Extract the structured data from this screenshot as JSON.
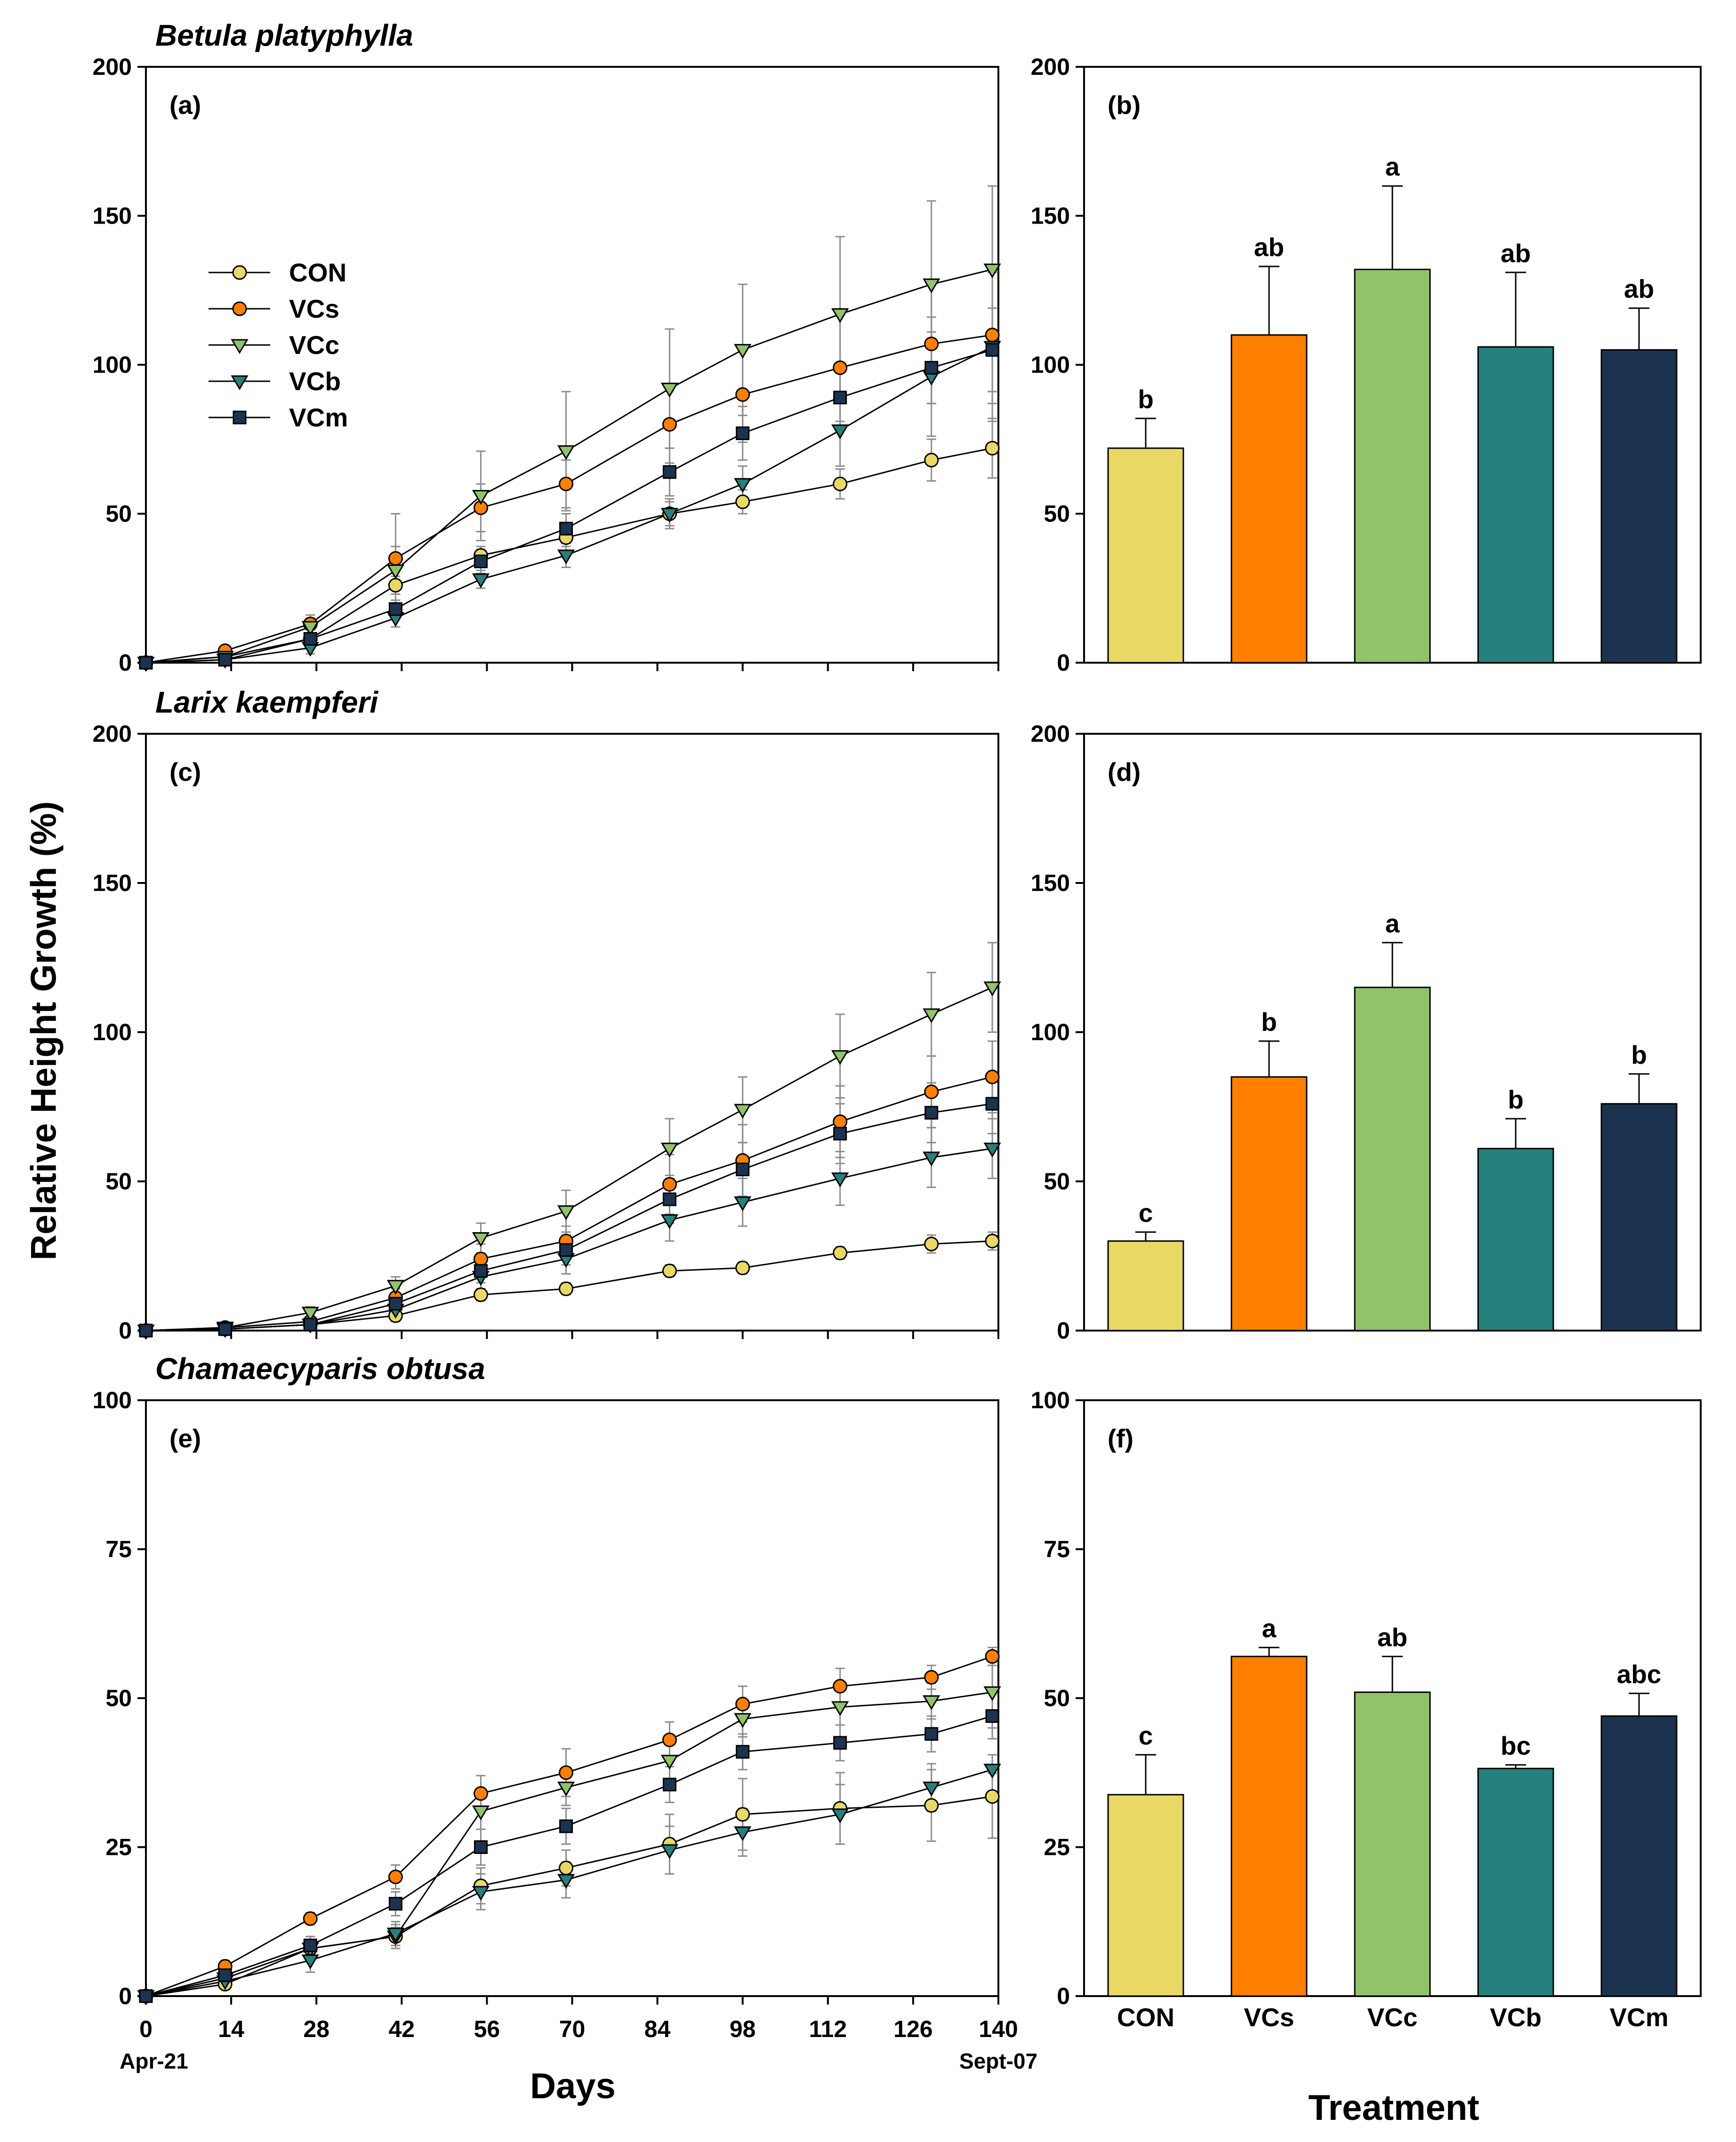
{
  "figure": {
    "ylabel": "Relative Height Growth (%)",
    "days_label": "Days",
    "treatment_label": "Treatment",
    "start_date_label": "Apr-21",
    "end_date_label": "Sept-07"
  },
  "colors": {
    "CON": "#EAD865",
    "VCs": "#FF7F00",
    "VCc": "#92C36B",
    "VCb": "#26807D",
    "VCm": "#1C3350",
    "error_bar": "#8C8C8C"
  },
  "chart_data": [
    {
      "panel": "(a)",
      "type": "line",
      "title": "Betula platyphylla",
      "xlim": [
        0,
        140
      ],
      "xticks": [
        0,
        14,
        28,
        42,
        56,
        70,
        84,
        98,
        112,
        126,
        140
      ],
      "xtick_labels": false,
      "ylim": [
        0,
        200
      ],
      "yticks": [
        0,
        50,
        100,
        150,
        200
      ],
      "legend": "top-left",
      "x": [
        0,
        13,
        27,
        41,
        55,
        69,
        86,
        98,
        114,
        129,
        139
      ],
      "series": [
        {
          "name": "CON",
          "values": [
            0,
            2,
            8,
            26,
            36,
            42,
            50,
            54,
            60,
            68,
            72
          ],
          "errors": [
            0,
            0.5,
            2,
            3,
            3,
            3,
            4,
            4,
            5,
            7,
            10
          ]
        },
        {
          "name": "VCs",
          "values": [
            0,
            4,
            13,
            35,
            52,
            60,
            80,
            90,
            99,
            107,
            110
          ],
          "errors": [
            0,
            1,
            3,
            15,
            8,
            8,
            13,
            16,
            18,
            20,
            23
          ]
        },
        {
          "name": "VCc",
          "values": [
            0,
            2,
            12,
            31,
            56,
            71,
            92,
            105,
            117,
            127,
            132
          ],
          "errors": [
            0,
            1,
            3,
            8,
            15,
            20,
            20,
            22,
            26,
            28,
            28
          ]
        },
        {
          "name": "VCb",
          "values": [
            0,
            1,
            5,
            15,
            28,
            36,
            50,
            60,
            78,
            96,
            106
          ],
          "errors": [
            0,
            0.5,
            2,
            3,
            3,
            4,
            5,
            6,
            12,
            20,
            25
          ]
        },
        {
          "name": "VCm",
          "values": [
            0,
            1,
            8,
            18,
            34,
            45,
            64,
            77,
            89,
            99,
            105
          ],
          "errors": [
            0,
            0.5,
            3,
            3,
            4,
            5,
            8,
            9,
            10,
            12,
            14
          ]
        }
      ]
    },
    {
      "panel": "(b)",
      "type": "bar",
      "ylim": [
        0,
        200
      ],
      "yticks": [
        0,
        50,
        100,
        150,
        200
      ],
      "category_labels": false,
      "categories": [
        "CON",
        "VCs",
        "VCc",
        "VCb",
        "VCm"
      ],
      "values": [
        72,
        110,
        132,
        106,
        105
      ],
      "errors": [
        10,
        23,
        28,
        25,
        14
      ],
      "letters": [
        "b",
        "ab",
        "a",
        "ab",
        "ab"
      ]
    },
    {
      "panel": "(c)",
      "type": "line",
      "title": "Larix kaempferi",
      "xlim": [
        0,
        140
      ],
      "xticks": [
        0,
        14,
        28,
        42,
        56,
        70,
        84,
        98,
        112,
        126,
        140
      ],
      "xtick_labels": false,
      "ylim": [
        0,
        200
      ],
      "yticks": [
        0,
        50,
        100,
        150,
        200
      ],
      "x": [
        0,
        13,
        27,
        41,
        55,
        69,
        86,
        98,
        114,
        129,
        139
      ],
      "series": [
        {
          "name": "CON",
          "values": [
            0,
            0.5,
            2,
            5,
            12,
            14,
            20,
            21,
            26,
            29,
            30
          ],
          "errors": [
            0,
            0.3,
            1,
            2,
            2,
            2,
            2,
            2,
            2,
            3,
            3
          ]
        },
        {
          "name": "VCs",
          "values": [
            0,
            1,
            3,
            11,
            24,
            30,
            49,
            57,
            70,
            80,
            85
          ],
          "errors": [
            0,
            0.5,
            1,
            3,
            5,
            5,
            10,
            12,
            12,
            12,
            12
          ]
        },
        {
          "name": "VCc",
          "values": [
            0,
            1,
            6,
            15,
            31,
            40,
            61,
            74,
            92,
            106,
            115
          ],
          "errors": [
            0,
            0.5,
            2,
            3,
            5,
            7,
            10,
            11,
            14,
            14,
            15
          ]
        },
        {
          "name": "VCb",
          "values": [
            0,
            0.5,
            2,
            7,
            18,
            24,
            37,
            43,
            51,
            58,
            61
          ],
          "errors": [
            0,
            0.3,
            1,
            2,
            4,
            5,
            7,
            8,
            9,
            10,
            10
          ]
        },
        {
          "name": "VCm",
          "values": [
            0,
            0.5,
            2,
            9,
            20,
            27,
            44,
            54,
            66,
            73,
            76
          ],
          "errors": [
            0,
            0.3,
            1,
            2,
            4,
            5,
            8,
            9,
            10,
            10,
            10
          ]
        }
      ]
    },
    {
      "panel": "(d)",
      "type": "bar",
      "ylim": [
        0,
        200
      ],
      "yticks": [
        0,
        50,
        100,
        150,
        200
      ],
      "category_labels": false,
      "categories": [
        "CON",
        "VCs",
        "VCc",
        "VCb",
        "VCm"
      ],
      "values": [
        30,
        85,
        115,
        61,
        76
      ],
      "errors": [
        3,
        12,
        15,
        10,
        10
      ],
      "letters": [
        "c",
        "b",
        "a",
        "b",
        "b"
      ]
    },
    {
      "panel": "(e)",
      "type": "line",
      "title": "Chamaecyparis obtusa",
      "xlim": [
        0,
        140
      ],
      "xticks": [
        0,
        14,
        28,
        42,
        56,
        70,
        84,
        98,
        112,
        126,
        140
      ],
      "xtick_labels": true,
      "ylim": [
        0,
        100
      ],
      "yticks": [
        0,
        25,
        50,
        75,
        100
      ],
      "x": [
        0,
        13,
        27,
        41,
        55,
        69,
        86,
        98,
        114,
        129,
        139
      ],
      "series": [
        {
          "name": "CON",
          "values": [
            0,
            2,
            8,
            10,
            18.5,
            21.5,
            25.5,
            30.5,
            31.5,
            32,
            33.5
          ],
          "errors": [
            0,
            0.5,
            1,
            1.5,
            3,
            3,
            5,
            6,
            6,
            6,
            7
          ]
        },
        {
          "name": "VCs",
          "values": [
            0,
            5,
            13,
            20,
            34,
            37.5,
            43,
            49,
            52,
            53.5,
            57
          ],
          "errors": [
            0,
            1,
            1,
            2,
            3,
            4,
            3,
            3,
            3,
            2,
            1.5
          ]
        },
        {
          "name": "VCc",
          "values": [
            0,
            3,
            8,
            10,
            31,
            35,
            39.5,
            46.5,
            48.5,
            49.5,
            51
          ],
          "errors": [
            0,
            1,
            2,
            2,
            3,
            3,
            3,
            3,
            3,
            3,
            6
          ]
        },
        {
          "name": "VCb",
          "values": [
            0,
            2.5,
            6,
            10.5,
            17.5,
            19.5,
            24.5,
            27.5,
            30.5,
            35,
            38
          ],
          "errors": [
            0,
            1,
            2,
            2,
            3,
            3,
            4,
            4,
            5,
            4,
            0.6
          ]
        },
        {
          "name": "VCm",
          "values": [
            0,
            3.5,
            8.5,
            15.5,
            25,
            28.5,
            35.5,
            41,
            42.5,
            44,
            47
          ],
          "errors": [
            0,
            1,
            1.5,
            2,
            3,
            3,
            3,
            3,
            3,
            3,
            3.8
          ]
        }
      ]
    },
    {
      "panel": "(f)",
      "type": "bar",
      "ylim": [
        0,
        100
      ],
      "yticks": [
        0,
        25,
        50,
        75,
        100
      ],
      "category_labels": true,
      "categories": [
        "CON",
        "VCs",
        "VCc",
        "VCb",
        "VCm"
      ],
      "values": [
        33.8,
        57,
        51,
        38.2,
        47
      ],
      "errors": [
        6.7,
        1.5,
        6,
        0.6,
        3.8
      ],
      "letters": [
        "c",
        "a",
        "ab",
        "bc",
        "abc"
      ]
    }
  ]
}
